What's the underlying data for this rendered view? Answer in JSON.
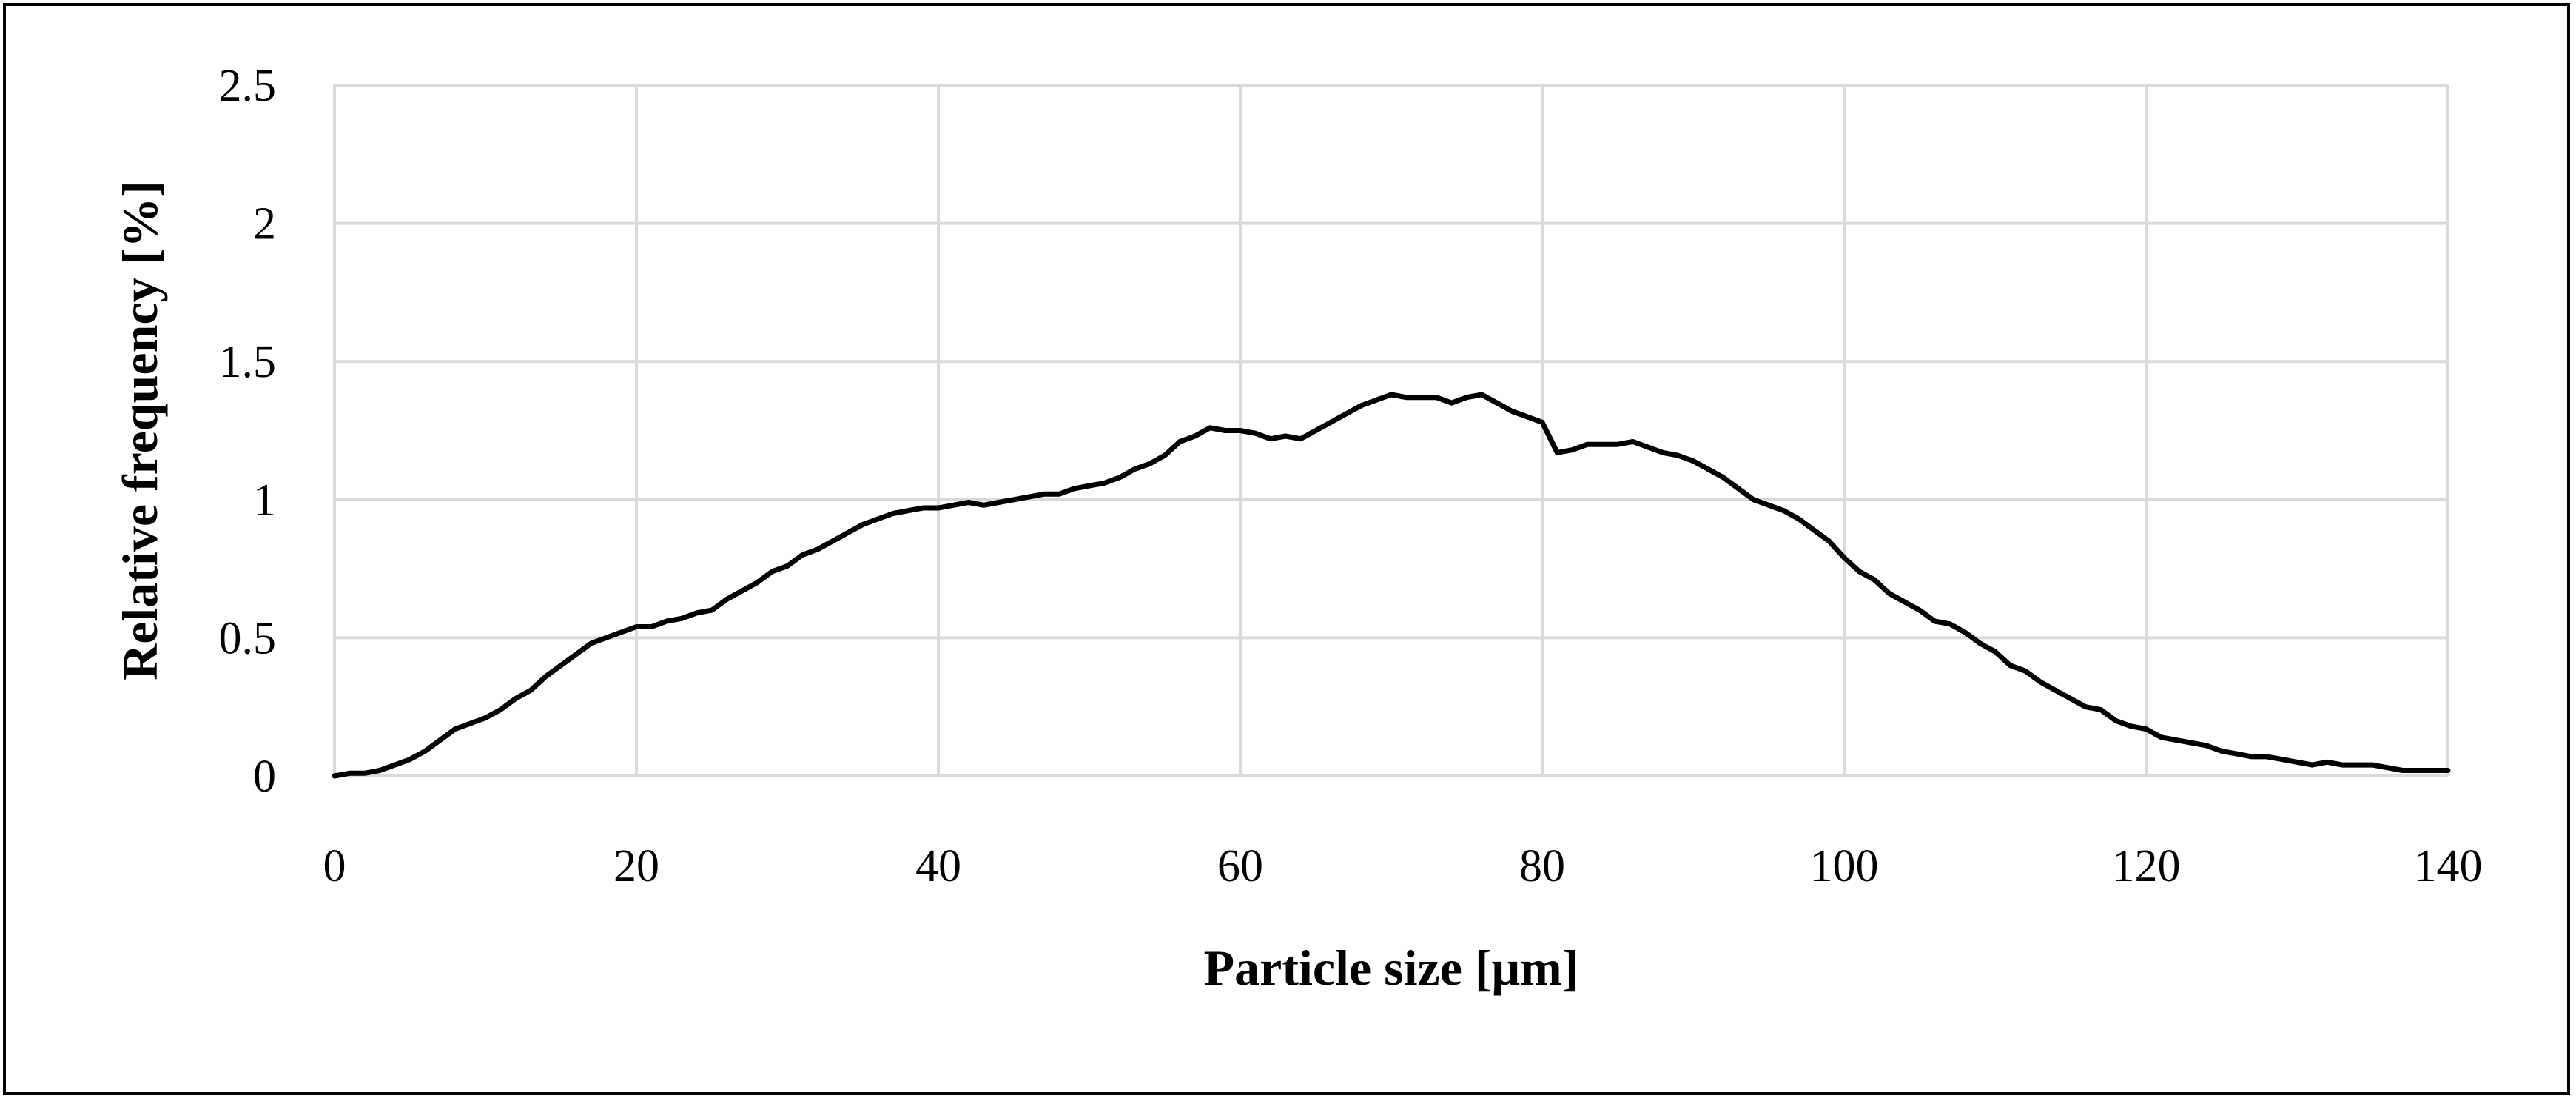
{
  "chart_data": {
    "type": "line",
    "title": "",
    "xlabel": "Particle size [μm]",
    "ylabel": "Relative frequency [%]",
    "xlim": [
      0,
      140
    ],
    "ylim": [
      0,
      2.5
    ],
    "x_ticks": [
      "0",
      "20",
      "40",
      "60",
      "80",
      "100",
      "120",
      "140"
    ],
    "y_ticks": [
      "0",
      "0.5",
      "1",
      "1.5",
      "2",
      "2.5"
    ],
    "grid": true,
    "legend": "none",
    "colors": {
      "line": "#000000",
      "grid": "#d9d9d9"
    },
    "series": [
      {
        "x": [
          0,
          1,
          2,
          3,
          4,
          5,
          6,
          7,
          8,
          9,
          10,
          11,
          12,
          13,
          14,
          15,
          16,
          17,
          18,
          19,
          20,
          21,
          22,
          23,
          24,
          25,
          26,
          27,
          28,
          29,
          30,
          31,
          32,
          33,
          34,
          35,
          36,
          37,
          38,
          39,
          40,
          41,
          42,
          43,
          44,
          45,
          46,
          47,
          48,
          49,
          50,
          51,
          52,
          53,
          54,
          55,
          56,
          57,
          58,
          59,
          60,
          61,
          62,
          63,
          64,
          65,
          66,
          67,
          68,
          69,
          70,
          71,
          72,
          73,
          74,
          75,
          76,
          77,
          78,
          79,
          80,
          81,
          82,
          83,
          84,
          85,
          86,
          87,
          88,
          89,
          90,
          91,
          92,
          93,
          94,
          95,
          96,
          97,
          98,
          99,
          100,
          101,
          102,
          103,
          104,
          105,
          106,
          107,
          108,
          109,
          110,
          111,
          112,
          113,
          114,
          115,
          116,
          117,
          118,
          119,
          120,
          121,
          122,
          123,
          124,
          125,
          126,
          127,
          128,
          129,
          130,
          131,
          132,
          133,
          134,
          135,
          136,
          137,
          138,
          139,
          140
        ],
        "values": [
          0.0,
          0.01,
          0.01,
          0.02,
          0.04,
          0.06,
          0.09,
          0.13,
          0.17,
          0.19,
          0.21,
          0.24,
          0.28,
          0.31,
          0.36,
          0.4,
          0.44,
          0.48,
          0.5,
          0.52,
          0.54,
          0.54,
          0.56,
          0.57,
          0.59,
          0.6,
          0.64,
          0.67,
          0.7,
          0.74,
          0.76,
          0.8,
          0.82,
          0.85,
          0.88,
          0.91,
          0.93,
          0.95,
          0.96,
          0.97,
          0.97,
          0.98,
          0.99,
          0.98,
          0.99,
          1.0,
          1.01,
          1.02,
          1.02,
          1.04,
          1.05,
          1.06,
          1.08,
          1.11,
          1.13,
          1.16,
          1.21,
          1.23,
          1.26,
          1.25,
          1.25,
          1.24,
          1.22,
          1.23,
          1.22,
          1.25,
          1.28,
          1.31,
          1.34,
          1.36,
          1.38,
          1.37,
          1.37,
          1.37,
          1.35,
          1.37,
          1.38,
          1.35,
          1.32,
          1.3,
          1.28,
          1.17,
          1.18,
          1.2,
          1.2,
          1.2,
          1.21,
          1.19,
          1.17,
          1.16,
          1.14,
          1.11,
          1.08,
          1.04,
          1.0,
          0.98,
          0.96,
          0.93,
          0.89,
          0.85,
          0.79,
          0.74,
          0.71,
          0.66,
          0.63,
          0.6,
          0.56,
          0.55,
          0.52,
          0.48,
          0.45,
          0.4,
          0.38,
          0.34,
          0.31,
          0.28,
          0.25,
          0.24,
          0.2,
          0.18,
          0.17,
          0.14,
          0.13,
          0.12,
          0.11,
          0.09,
          0.08,
          0.07,
          0.07,
          0.06,
          0.05,
          0.04,
          0.05,
          0.04,
          0.04,
          0.04,
          0.03,
          0.02,
          0.02,
          0.02,
          0.02
        ]
      }
    ]
  }
}
